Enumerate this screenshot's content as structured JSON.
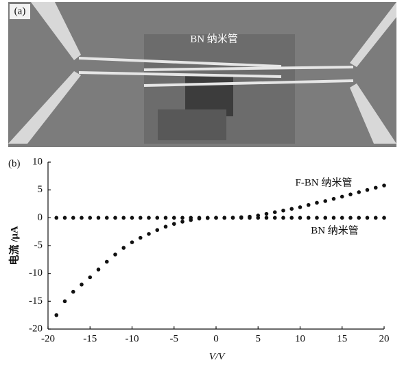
{
  "panel_a": {
    "label": "(a)",
    "annotation": "BN 纳米管"
  },
  "chart_data": {
    "type": "scatter",
    "panel_label": "(b)",
    "x_label": "V/V",
    "y_label": "电流 /μA",
    "x": [
      -19,
      -18,
      -17,
      -16,
      -15,
      -14,
      -13,
      -12,
      -11,
      -10,
      -9,
      -8,
      -7,
      -6,
      -5,
      -4,
      -3,
      -2,
      -1,
      0,
      1,
      2,
      3,
      4,
      5,
      6,
      7,
      8,
      9,
      10,
      11,
      12,
      13,
      14,
      15,
      16,
      17,
      18,
      19,
      20
    ],
    "series": [
      {
        "name": "F-BN 纳米管",
        "color": "#111111",
        "values": [
          -17.5,
          -15,
          -13.3,
          -12,
          -10.7,
          -9.3,
          -7.9,
          -6.6,
          -5.4,
          -4.4,
          -3.6,
          -2.9,
          -2.2,
          -1.6,
          -1.1,
          -0.7,
          -0.4,
          -0.15,
          -0.05,
          0,
          0,
          0.02,
          0.1,
          0.2,
          0.4,
          0.7,
          1.0,
          1.3,
          1.6,
          1.9,
          2.3,
          2.7,
          3.0,
          3.4,
          3.8,
          4.2,
          4.6,
          5.0,
          5.4,
          5.8
        ]
      },
      {
        "name": "BN 纳米管",
        "color": "#111111",
        "values": [
          0,
          0,
          0,
          0,
          0,
          0,
          0,
          0,
          0,
          0,
          0,
          0,
          0,
          0,
          0,
          0,
          0,
          0,
          0,
          0,
          0,
          0,
          0,
          0,
          0,
          0,
          0,
          0,
          0,
          0,
          0,
          0,
          0,
          0,
          0,
          0,
          0,
          0,
          0,
          0
        ]
      }
    ],
    "xlim": [
      -20,
      20
    ],
    "xticks": [
      -20,
      -15,
      -10,
      -5,
      0,
      5,
      10,
      15,
      20
    ],
    "ylim": [
      -20,
      10
    ],
    "yticks": [
      -20,
      -15,
      -10,
      -5,
      0,
      5,
      10
    ]
  }
}
